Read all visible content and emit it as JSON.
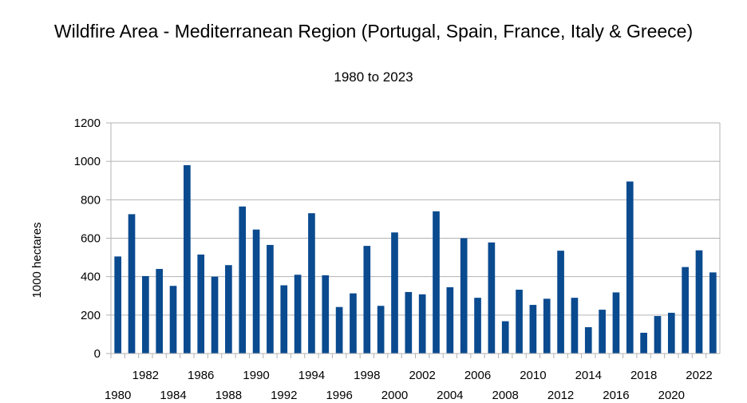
{
  "chart_data": {
    "type": "bar",
    "title": "Wildfire Area  - Mediterranean Region (Portugal, Spain, France, Italy & Greece)",
    "subtitle": "1980 to 2023",
    "xlabel": "",
    "ylabel": "1000 hectares",
    "ylim": [
      0,
      1200
    ],
    "yticks": [
      0,
      200,
      400,
      600,
      800,
      1000,
      1200
    ],
    "grid": true,
    "bar_color": "#0a4a8f",
    "grid_color": "#b3b3b3",
    "categories": [
      "1980",
      "1981",
      "1982",
      "1983",
      "1984",
      "1985",
      "1986",
      "1987",
      "1988",
      "1989",
      "1990",
      "1991",
      "1992",
      "1993",
      "1994",
      "1995",
      "1996",
      "1997",
      "1998",
      "1999",
      "2000",
      "2001",
      "2002",
      "2003",
      "2004",
      "2005",
      "2006",
      "2007",
      "2008",
      "2009",
      "2010",
      "2011",
      "2012",
      "2013",
      "2014",
      "2015",
      "2016",
      "2017",
      "2018",
      "2019",
      "2020",
      "2021",
      "2022",
      "2023"
    ],
    "x_tick_labels_row1": [
      "1982",
      "1986",
      "1990",
      "1994",
      "1998",
      "2002",
      "2006",
      "2010",
      "2014",
      "2018",
      "2022"
    ],
    "x_tick_labels_row2": [
      "1980",
      "1984",
      "1988",
      "1992",
      "1996",
      "2000",
      "2004",
      "2008",
      "2012",
      "2016",
      "2020"
    ],
    "values": [
      505,
      725,
      403,
      440,
      352,
      980,
      515,
      400,
      460,
      765,
      645,
      565,
      355,
      410,
      730,
      407,
      242,
      313,
      560,
      248,
      630,
      320,
      308,
      740,
      345,
      600,
      290,
      578,
      168,
      332,
      253,
      285,
      535,
      290,
      137,
      228,
      318,
      895,
      108,
      195,
      212,
      450,
      537,
      422
    ]
  }
}
